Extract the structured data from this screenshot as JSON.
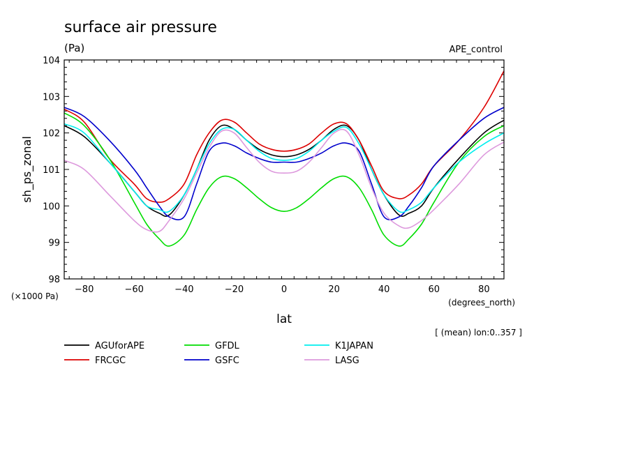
{
  "chart_data": {
    "type": "line",
    "title": "surface air pressure",
    "subtitle": "(Pa)",
    "run_label": "APE_control",
    "xlabel": "lat",
    "ylabel": "sh_ps_zonal",
    "x_unit_label": "(degrees_north)",
    "y_scale_label": "(×1000 Pa)",
    "footnote": "[ (mean) lon:0..357 ]",
    "xlim": [
      -88,
      88
    ],
    "ylim": [
      98,
      104
    ],
    "xticks": [
      -80,
      -60,
      -40,
      -20,
      0,
      20,
      40,
      60,
      80
    ],
    "yticks": [
      98,
      99,
      100,
      101,
      102,
      103,
      104
    ],
    "x": [
      -88,
      -80,
      -70,
      -60,
      -55,
      -50,
      -46,
      -40,
      -35,
      -30,
      -25,
      -20,
      -15,
      -10,
      -5,
      0,
      5,
      10,
      15,
      20,
      25,
      30,
      35,
      40,
      46,
      50,
      55,
      60,
      70,
      80,
      88
    ],
    "series": [
      {
        "name": "AGUforAPE",
        "color": "#000000",
        "values": [
          102.2,
          101.9,
          101.2,
          100.4,
          100.0,
          99.8,
          99.75,
          100.3,
          101.0,
          101.8,
          102.2,
          102.1,
          101.8,
          101.55,
          101.4,
          101.35,
          101.4,
          101.55,
          101.8,
          102.1,
          102.2,
          101.8,
          101.0,
          100.3,
          99.75,
          99.8,
          100.0,
          100.5,
          101.3,
          102.0,
          102.35
        ]
      },
      {
        "name": "FRCGC",
        "color": "#dd0000",
        "values": [
          102.65,
          102.3,
          101.3,
          100.6,
          100.2,
          100.1,
          100.2,
          100.6,
          101.4,
          102.0,
          102.35,
          102.3,
          102.0,
          101.7,
          101.55,
          101.5,
          101.55,
          101.7,
          102.0,
          102.25,
          102.25,
          101.8,
          101.1,
          100.4,
          100.2,
          100.3,
          100.6,
          101.1,
          101.8,
          102.7,
          103.7
        ]
      },
      {
        "name": "GFDL",
        "color": "#00dd00",
        "values": [
          102.55,
          102.2,
          101.3,
          100.1,
          99.5,
          99.1,
          98.9,
          99.2,
          99.9,
          100.5,
          100.8,
          100.75,
          100.5,
          100.2,
          99.95,
          99.85,
          99.95,
          100.2,
          100.5,
          100.75,
          100.8,
          100.5,
          99.9,
          99.2,
          98.9,
          99.1,
          99.5,
          100.1,
          101.2,
          101.9,
          102.2
        ]
      },
      {
        "name": "GSFC",
        "color": "#0000cc",
        "values": [
          102.7,
          102.45,
          101.8,
          101.0,
          100.5,
          100.0,
          99.7,
          99.7,
          100.6,
          101.5,
          101.72,
          101.65,
          101.45,
          101.3,
          101.2,
          101.2,
          101.2,
          101.3,
          101.45,
          101.65,
          101.72,
          101.5,
          100.6,
          99.7,
          99.7,
          100.0,
          100.5,
          101.1,
          101.8,
          102.4,
          102.7
        ]
      },
      {
        "name": "K1JAPAN",
        "color": "#00eeee",
        "values": [
          102.25,
          102.0,
          101.2,
          100.4,
          100.0,
          99.9,
          99.85,
          100.3,
          101.0,
          101.7,
          102.1,
          102.1,
          101.8,
          101.5,
          101.3,
          101.25,
          101.3,
          101.5,
          101.8,
          102.05,
          102.15,
          101.7,
          101.0,
          100.3,
          99.85,
          99.9,
          100.1,
          100.5,
          101.2,
          101.7,
          102.0
        ]
      },
      {
        "name": "LASG",
        "color": "#dd99dd",
        "values": [
          101.25,
          101.0,
          100.3,
          99.6,
          99.35,
          99.3,
          99.6,
          100.2,
          100.9,
          101.6,
          102.05,
          102.0,
          101.6,
          101.2,
          100.95,
          100.9,
          100.95,
          101.2,
          101.6,
          102.0,
          102.05,
          101.4,
          100.5,
          99.8,
          99.45,
          99.4,
          99.6,
          99.9,
          100.6,
          101.4,
          101.75
        ]
      }
    ]
  }
}
